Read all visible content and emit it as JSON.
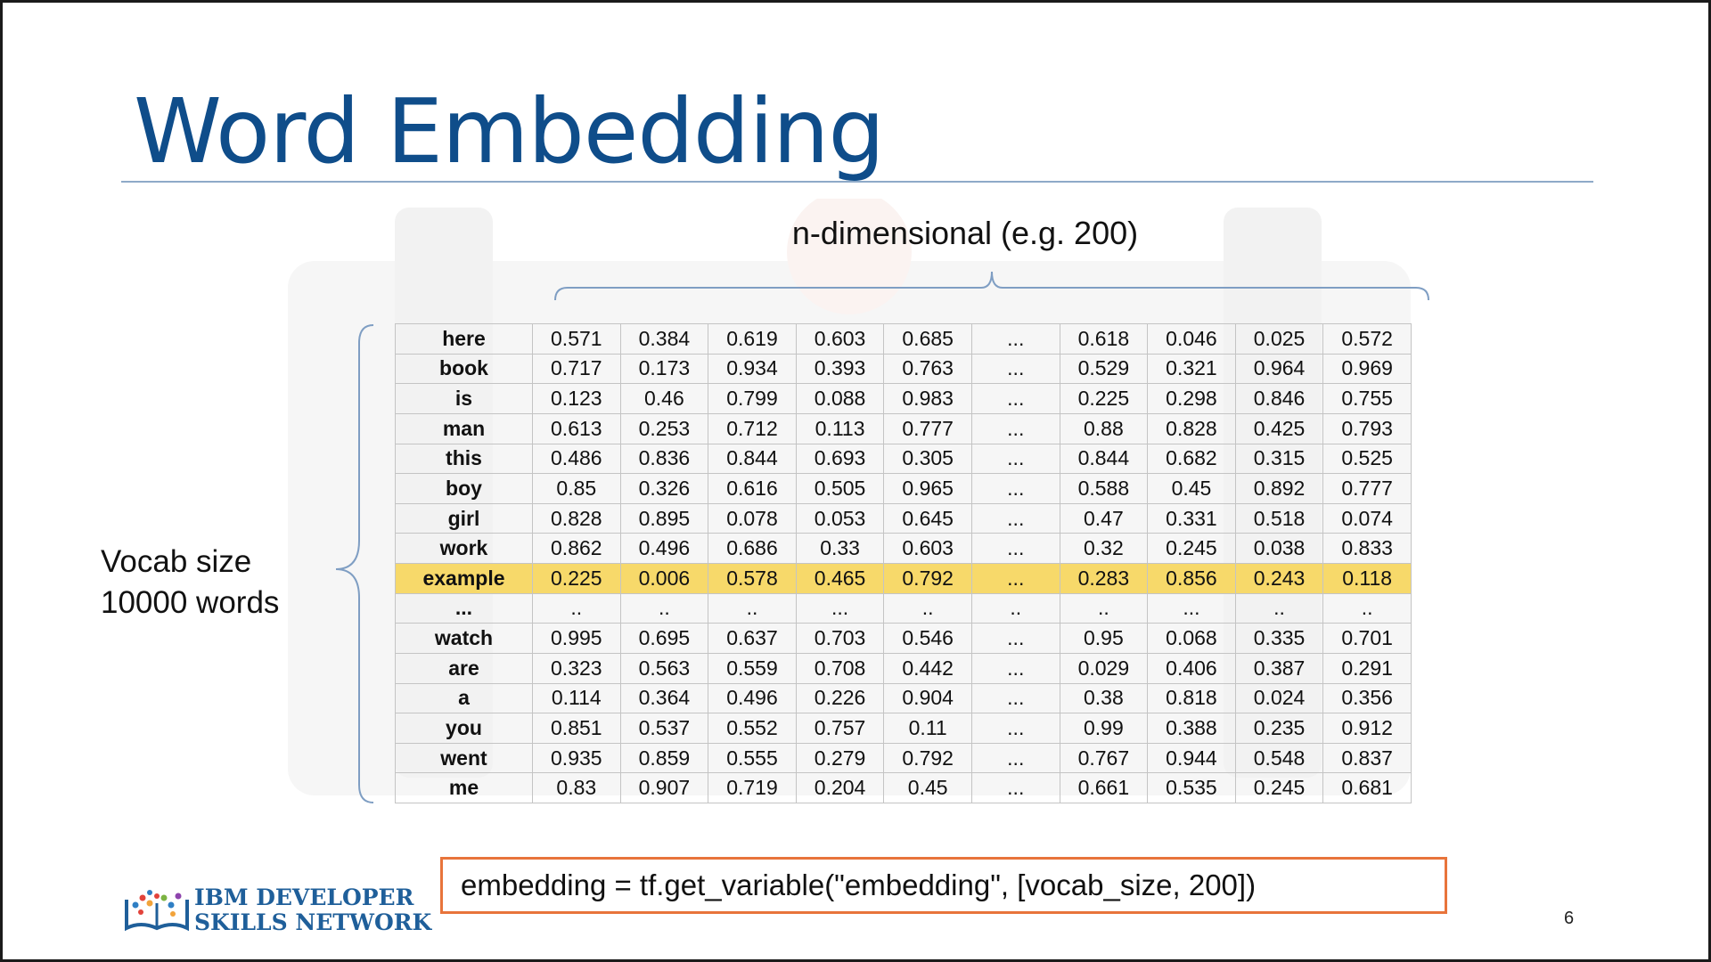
{
  "slide": {
    "title": "Word Embedding",
    "subtitle": "n-dimensional (e.g. 200)",
    "vocab_line1": "Vocab size",
    "vocab_line2": "10000 words",
    "code": "embedding = tf.get_variable(\"embedding\", [vocab_size, 200])",
    "page_number": "6",
    "logo_line1": "IBM DEVELOPER",
    "logo_line2": "SKILLS NETWORK",
    "highlight_color": "#f7d96a",
    "title_color": "#0f4d8a",
    "code_border_color": "#e8743b"
  },
  "table": {
    "highlight_row_index": 8,
    "rows": [
      [
        "here",
        "0.571",
        "0.384",
        "0.619",
        "0.603",
        "0.685",
        "...",
        "0.618",
        "0.046",
        "0.025",
        "0.572"
      ],
      [
        "book",
        "0.717",
        "0.173",
        "0.934",
        "0.393",
        "0.763",
        "...",
        "0.529",
        "0.321",
        "0.964",
        "0.969"
      ],
      [
        "is",
        "0.123",
        "0.46",
        "0.799",
        "0.088",
        "0.983",
        "...",
        "0.225",
        "0.298",
        "0.846",
        "0.755"
      ],
      [
        "man",
        "0.613",
        "0.253",
        "0.712",
        "0.113",
        "0.777",
        "...",
        "0.88",
        "0.828",
        "0.425",
        "0.793"
      ],
      [
        "this",
        "0.486",
        "0.836",
        "0.844",
        "0.693",
        "0.305",
        "...",
        "0.844",
        "0.682",
        "0.315",
        "0.525"
      ],
      [
        "boy",
        "0.85",
        "0.326",
        "0.616",
        "0.505",
        "0.965",
        "...",
        "0.588",
        "0.45",
        "0.892",
        "0.777"
      ],
      [
        "girl",
        "0.828",
        "0.895",
        "0.078",
        "0.053",
        "0.645",
        "...",
        "0.47",
        "0.331",
        "0.518",
        "0.074"
      ],
      [
        "work",
        "0.862",
        "0.496",
        "0.686",
        "0.33",
        "0.603",
        "...",
        "0.32",
        "0.245",
        "0.038",
        "0.833"
      ],
      [
        "example",
        "0.225",
        "0.006",
        "0.578",
        "0.465",
        "0.792",
        "...",
        "0.283",
        "0.856",
        "0.243",
        "0.118"
      ],
      [
        "...",
        "..",
        "..",
        "..",
        "...",
        "..",
        "..",
        "..",
        "...",
        "..",
        ".."
      ],
      [
        "watch",
        "0.995",
        "0.695",
        "0.637",
        "0.703",
        "0.546",
        "...",
        "0.95",
        "0.068",
        "0.335",
        "0.701"
      ],
      [
        "are",
        "0.323",
        "0.563",
        "0.559",
        "0.708",
        "0.442",
        "...",
        "0.029",
        "0.406",
        "0.387",
        "0.291"
      ],
      [
        "a",
        "0.114",
        "0.364",
        "0.496",
        "0.226",
        "0.904",
        "...",
        "0.38",
        "0.818",
        "0.024",
        "0.356"
      ],
      [
        "you",
        "0.851",
        "0.537",
        "0.552",
        "0.757",
        "0.11",
        "...",
        "0.99",
        "0.388",
        "0.235",
        "0.912"
      ],
      [
        "went",
        "0.935",
        "0.859",
        "0.555",
        "0.279",
        "0.792",
        "...",
        "0.767",
        "0.944",
        "0.548",
        "0.837"
      ],
      [
        "me",
        "0.83",
        "0.907",
        "0.719",
        "0.204",
        "0.45",
        "...",
        "0.661",
        "0.535",
        "0.245",
        "0.681"
      ]
    ]
  }
}
